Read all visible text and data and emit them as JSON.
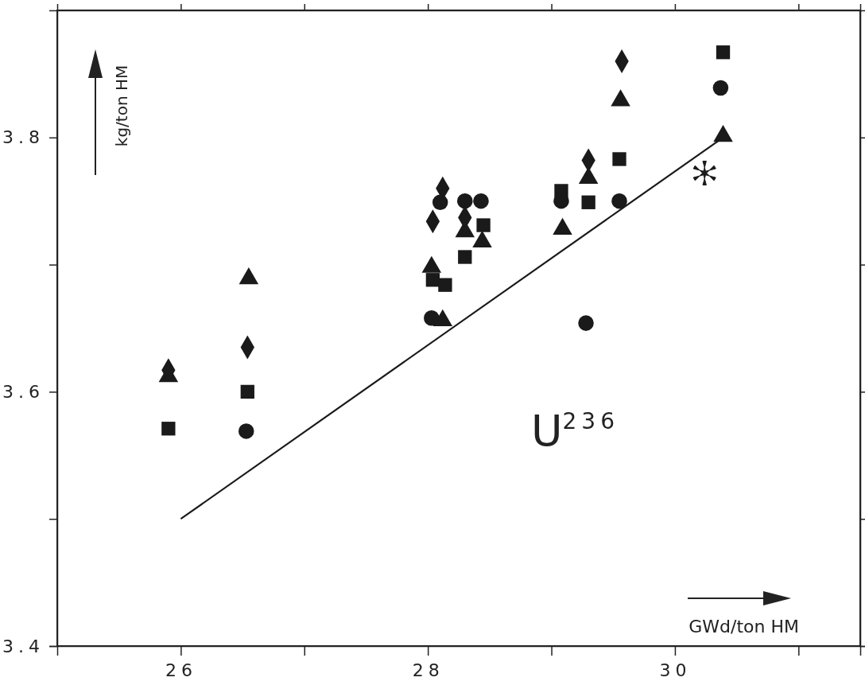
{
  "chart_data": {
    "type": "scatter",
    "xlabel": "GWd/ton HM",
    "ylabel": "kg/ton HM",
    "annotations": [
      "U$^{236}$"
    ],
    "xlim": [
      25,
      31.5
    ],
    "xticks": [
      26,
      {
        "value": 27,
        "label": null
      },
      28,
      {
        "value": 29,
        "label": null
      },
      30,
      {
        "value": 31,
        "label": null
      }
    ],
    "ylim": [
      3.4,
      3.9
    ],
    "yticks": [
      3.4,
      {
        "value": 3.5,
        "label": null
      },
      3.6,
      {
        "value": 3.7,
        "label": null
      },
      3.8
    ],
    "grid": false,
    "series": [
      {
        "color": "#1a1a1a",
        "marker": "diamond",
        "x": [
          25.9,
          26.54,
          28.12,
          28.04,
          28.3,
          29.3,
          29.57
        ],
        "values": [
          3.617,
          3.635,
          3.76,
          3.734,
          3.737,
          3.782,
          3.86
        ]
      },
      {
        "color": "#1a1a1a",
        "marker": "triangle",
        "x": [
          25.9,
          26.55,
          28.3,
          28.44,
          28.03,
          28.12,
          29.56,
          29.3,
          29.09,
          30.39
        ],
        "values": [
          3.612,
          3.689,
          3.726,
          3.718,
          3.698,
          3.656,
          3.829,
          3.768,
          3.728,
          3.801
        ]
      },
      {
        "color": "#1a1a1a",
        "marker": "square",
        "x": [
          25.9,
          26.54,
          28.45,
          28.3,
          28.04,
          28.14,
          29.55,
          29.08,
          29.3,
          30.39
        ],
        "values": [
          3.571,
          3.6,
          3.731,
          3.706,
          3.688,
          3.684,
          3.783,
          3.758,
          3.749,
          3.867
        ]
      },
      {
        "color": "#1a1a1a",
        "marker": "circle",
        "x": [
          26.53,
          28.1,
          28.3,
          28.43,
          28.03,
          29.08,
          29.55,
          29.28,
          30.37
        ],
        "values": [
          3.569,
          3.749,
          3.75,
          3.75,
          3.658,
          3.75,
          3.75,
          3.654,
          3.839
        ]
      },
      {
        "color": "#1a1a1a",
        "marker": "star",
        "x": [
          30.24
        ],
        "values": [
          3.772
        ]
      },
      {
        "type": "line",
        "color": "#1a1a1a",
        "marker": "none",
        "line_style": "solid",
        "x": [
          26,
          30.39
        ],
        "values": [
          3.5,
          3.8
        ]
      }
    ]
  }
}
